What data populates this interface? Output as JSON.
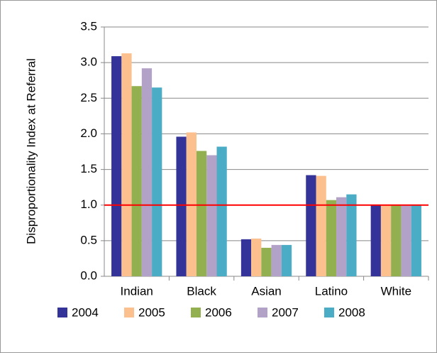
{
  "chart_data": {
    "type": "bar",
    "y_axis_label": "Disproportionality Index at Referral",
    "categories": [
      "Indian",
      "Black",
      "Asian",
      "Latino",
      "White"
    ],
    "series": [
      {
        "name": "2004",
        "color": "#333399",
        "values": [
          3.09,
          1.96,
          0.52,
          1.42,
          1.0
        ]
      },
      {
        "name": "2005",
        "color": "#fbc08d",
        "values": [
          3.13,
          2.02,
          0.53,
          1.41,
          1.0
        ]
      },
      {
        "name": "2006",
        "color": "#92b050",
        "values": [
          2.67,
          1.76,
          0.4,
          1.07,
          1.0
        ]
      },
      {
        "name": "2007",
        "color": "#b3a2c7",
        "values": [
          2.92,
          1.7,
          0.44,
          1.11,
          1.0
        ]
      },
      {
        "name": "2008",
        "color": "#4bacc6",
        "values": [
          2.65,
          1.82,
          0.44,
          1.15,
          1.0
        ]
      }
    ],
    "ylim": [
      0,
      3.5
    ],
    "yticks": [
      {
        "value": 0,
        "label": "0.0"
      },
      {
        "value": 0.5,
        "label": "0.5"
      },
      {
        "value": 1,
        "label": "1.0"
      },
      {
        "value": 1.5,
        "label": "1.5"
      },
      {
        "value": 2,
        "label": "2.0"
      },
      {
        "value": 2.5,
        "label": "2.5"
      },
      {
        "value": 3,
        "label": "3.0"
      },
      {
        "value": 3.5,
        "label": "3.5"
      }
    ],
    "grid": true,
    "reference_line": {
      "value": 1,
      "color": "#ff0000"
    },
    "legend": "bottom"
  }
}
